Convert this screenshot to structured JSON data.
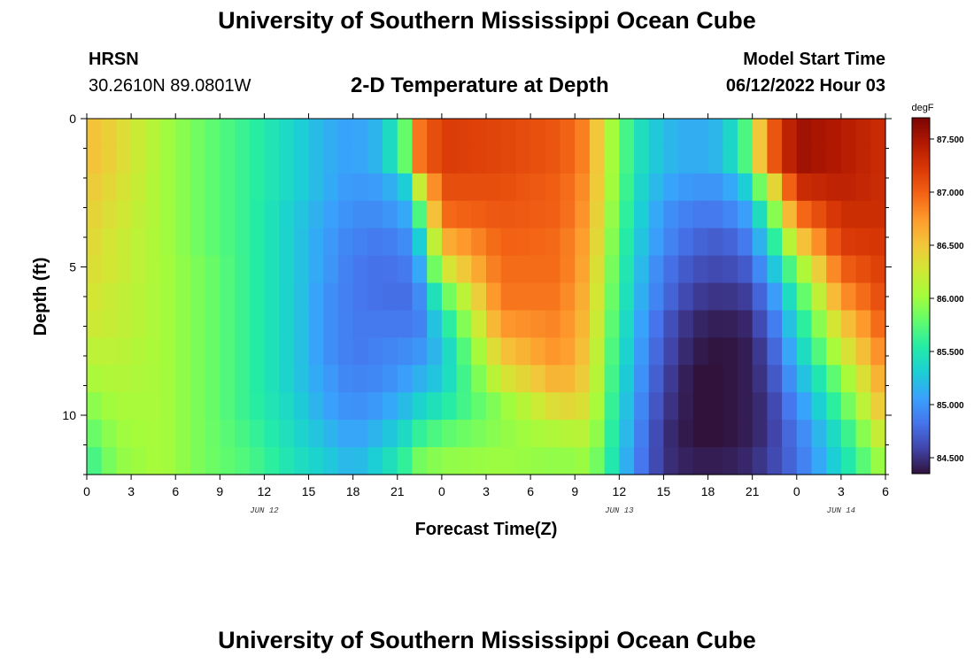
{
  "header": {
    "title": "University of Southern Mississippi Ocean Cube",
    "station_name": "HRSN",
    "station_coords": "30.2610N  89.0801W",
    "chart_title": "2-D Temperature at Depth",
    "model_start_label": "Model Start Time",
    "model_start_value": "06/12/2022 Hour 03"
  },
  "footer": {
    "title": "University of Southern Mississippi Ocean Cube"
  },
  "chart_data": {
    "type": "heatmap",
    "title": "2-D Temperature at Depth",
    "xlabel": "Forecast Time(Z)",
    "ylabel": "Depth (ft)",
    "x_hours_range": [
      0,
      54
    ],
    "x_ticks": [
      {
        "hour": 0,
        "label": "0"
      },
      {
        "hour": 3,
        "label": "3"
      },
      {
        "hour": 6,
        "label": "6"
      },
      {
        "hour": 9,
        "label": "9"
      },
      {
        "hour": 12,
        "label": "12"
      },
      {
        "hour": 15,
        "label": "15"
      },
      {
        "hour": 18,
        "label": "18"
      },
      {
        "hour": 21,
        "label": "21"
      },
      {
        "hour": 24,
        "label": "0"
      },
      {
        "hour": 27,
        "label": "3"
      },
      {
        "hour": 30,
        "label": "6"
      },
      {
        "hour": 33,
        "label": "9"
      },
      {
        "hour": 36,
        "label": "12"
      },
      {
        "hour": 39,
        "label": "15"
      },
      {
        "hour": 42,
        "label": "18"
      },
      {
        "hour": 45,
        "label": "21"
      },
      {
        "hour": 48,
        "label": "0"
      },
      {
        "hour": 51,
        "label": "3"
      },
      {
        "hour": 54,
        "label": "6"
      }
    ],
    "date_labels": [
      {
        "hour": 12,
        "label": "JUN 12"
      },
      {
        "hour": 36,
        "label": "JUN 13"
      },
      {
        "hour": 51,
        "label": "JUN 14"
      }
    ],
    "y_range": [
      0,
      12
    ],
    "y_ticks": [
      {
        "depth": 0,
        "label": "0"
      },
      {
        "depth": 5,
        "label": "5"
      },
      {
        "depth": 10,
        "label": "10"
      }
    ],
    "colorbar": {
      "unit": "degF",
      "range": [
        84.35,
        87.7
      ],
      "ticks": [
        "84.500",
        "85.000",
        "85.500",
        "86.000",
        "86.500",
        "87.000",
        "87.500"
      ],
      "colormap_stops": [
        "#30123b",
        "#4145ab",
        "#4675ed",
        "#39a2fc",
        "#1bcfd4",
        "#24eca6",
        "#61fc6c",
        "#a4fc3b",
        "#d1e834",
        "#f3c63a",
        "#fe9b2d",
        "#f36315",
        "#d93806",
        "#b11901",
        "#7a0403"
      ]
    },
    "depth_levels_ft": [
      0,
      1,
      2,
      3,
      4,
      5,
      6,
      7,
      8,
      9,
      10,
      11,
      12
    ],
    "time_keyframes_hours": [
      0,
      2,
      5,
      8,
      11,
      14,
      16,
      18,
      20,
      21.5,
      22.5,
      24,
      28,
      32,
      34,
      35,
      37,
      39,
      41,
      43,
      44.5,
      46,
      48,
      51,
      54
    ],
    "temperature_degF_by_depth": [
      [
        86.55,
        86.4,
        86.05,
        85.8,
        85.6,
        85.35,
        85.15,
        85.05,
        85.2,
        85.8,
        86.9,
        87.2,
        87.15,
        87.05,
        86.8,
        86.2,
        85.5,
        85.2,
        85.1,
        85.2,
        85.7,
        86.9,
        87.55,
        87.45,
        87.3
      ],
      [
        86.55,
        86.4,
        86.05,
        85.8,
        85.6,
        85.35,
        85.15,
        85.05,
        85.2,
        85.8,
        86.9,
        87.2,
        87.15,
        87.05,
        86.8,
        86.2,
        85.5,
        85.2,
        85.1,
        85.2,
        85.7,
        86.9,
        87.55,
        87.45,
        87.3
      ],
      [
        86.5,
        86.35,
        86.05,
        85.8,
        85.6,
        85.35,
        85.15,
        85.0,
        85.05,
        85.3,
        86.2,
        87.1,
        87.1,
        87.0,
        86.75,
        86.2,
        85.45,
        85.1,
        85.0,
        85.0,
        85.3,
        86.1,
        87.3,
        87.4,
        87.3
      ],
      [
        86.45,
        86.3,
        86.05,
        85.8,
        85.6,
        85.3,
        85.1,
        84.95,
        84.95,
        85.1,
        85.7,
        86.95,
        87.05,
        87.0,
        86.7,
        86.15,
        85.4,
        85.0,
        84.85,
        84.85,
        85.05,
        85.6,
        86.9,
        87.3,
        87.3
      ],
      [
        86.4,
        86.25,
        86.05,
        85.8,
        85.6,
        85.3,
        85.05,
        84.9,
        84.85,
        84.95,
        85.3,
        86.6,
        87.0,
        86.95,
        86.65,
        86.1,
        85.35,
        84.95,
        84.75,
        84.7,
        84.85,
        85.3,
        86.4,
        87.2,
        87.25
      ],
      [
        86.35,
        86.25,
        86.05,
        85.85,
        85.6,
        85.3,
        85.05,
        84.85,
        84.8,
        84.85,
        85.1,
        86.2,
        86.95,
        86.95,
        86.6,
        86.05,
        85.3,
        84.85,
        84.65,
        84.6,
        84.7,
        85.05,
        85.9,
        87.0,
        87.2
      ],
      [
        86.3,
        86.2,
        86.05,
        85.85,
        85.6,
        85.3,
        85.0,
        84.85,
        84.8,
        84.8,
        84.95,
        85.7,
        86.9,
        86.9,
        86.55,
        86.0,
        85.25,
        84.8,
        84.55,
        84.5,
        84.55,
        84.85,
        85.6,
        86.75,
        87.15
      ],
      [
        86.25,
        86.2,
        86.05,
        85.85,
        85.6,
        85.3,
        85.0,
        84.85,
        84.85,
        84.85,
        84.9,
        85.4,
        86.75,
        86.85,
        86.5,
        85.95,
        85.2,
        84.7,
        84.45,
        84.4,
        84.45,
        84.7,
        85.4,
        86.45,
        87.05
      ],
      [
        86.15,
        86.15,
        86.05,
        85.85,
        85.6,
        85.3,
        85.0,
        84.85,
        84.9,
        84.95,
        85.0,
        85.25,
        86.5,
        86.8,
        86.45,
        85.9,
        85.15,
        84.65,
        84.4,
        84.35,
        84.4,
        84.6,
        85.25,
        86.2,
        86.9
      ],
      [
        86.05,
        86.1,
        86.05,
        85.85,
        85.6,
        85.3,
        85.05,
        84.9,
        84.95,
        85.05,
        85.15,
        85.3,
        86.25,
        86.65,
        86.4,
        85.85,
        85.1,
        84.6,
        84.35,
        84.35,
        84.4,
        84.55,
        85.1,
        85.9,
        86.75
      ],
      [
        85.9,
        86.05,
        86.05,
        85.85,
        85.6,
        85.35,
        85.1,
        84.95,
        85.05,
        85.2,
        85.35,
        85.5,
        85.95,
        86.4,
        86.3,
        85.8,
        85.05,
        84.55,
        84.35,
        84.35,
        84.4,
        84.5,
        84.95,
        85.7,
        86.6
      ],
      [
        85.75,
        86.0,
        86.05,
        85.85,
        85.65,
        85.4,
        85.2,
        85.05,
        85.2,
        85.4,
        85.6,
        85.75,
        85.95,
        86.1,
        86.15,
        85.75,
        85.0,
        84.5,
        84.35,
        84.35,
        84.4,
        84.5,
        84.85,
        85.5,
        86.35
      ],
      [
        85.6,
        85.95,
        86.05,
        85.85,
        85.7,
        85.45,
        85.3,
        85.15,
        85.35,
        85.6,
        85.85,
        85.95,
        86.0,
        85.95,
        86.0,
        85.7,
        84.95,
        84.5,
        84.4,
        84.4,
        84.45,
        84.55,
        84.8,
        85.4,
        86.1
      ]
    ]
  }
}
